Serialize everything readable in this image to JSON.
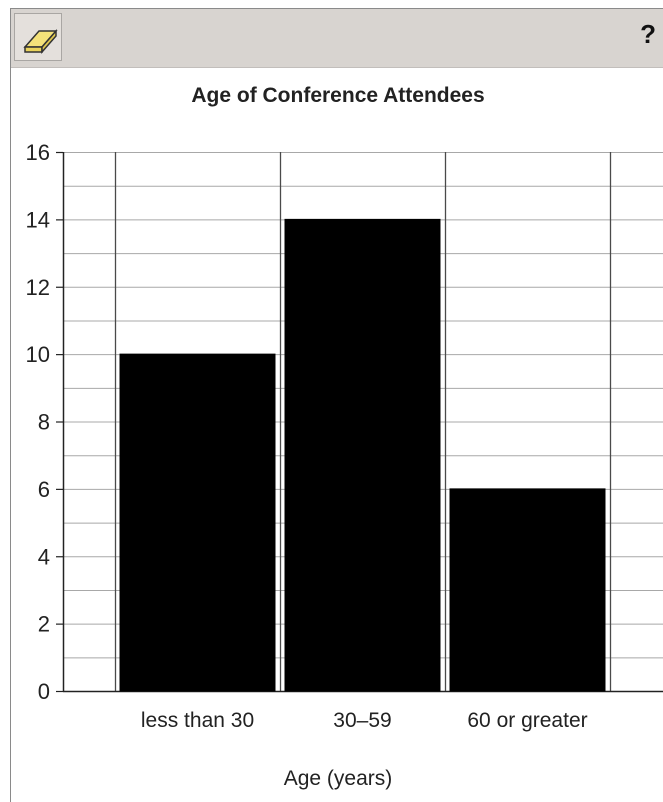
{
  "toolbar": {
    "eraser_icon": "eraser-icon",
    "help_label": "?"
  },
  "chart_data": {
    "type": "bar",
    "title": "Age of Conference Attendees",
    "xlabel": "Age (years)",
    "ylabel": "",
    "categories": [
      "less than 30",
      "30–59",
      "60 or greater"
    ],
    "values": [
      10,
      14,
      6
    ],
    "ylim": [
      0,
      16
    ],
    "yticks": [
      0,
      2,
      4,
      6,
      8,
      10,
      12,
      14,
      16
    ],
    "minor_step": 1,
    "grid": true,
    "legend": "none",
    "bar_color": "#000000"
  }
}
